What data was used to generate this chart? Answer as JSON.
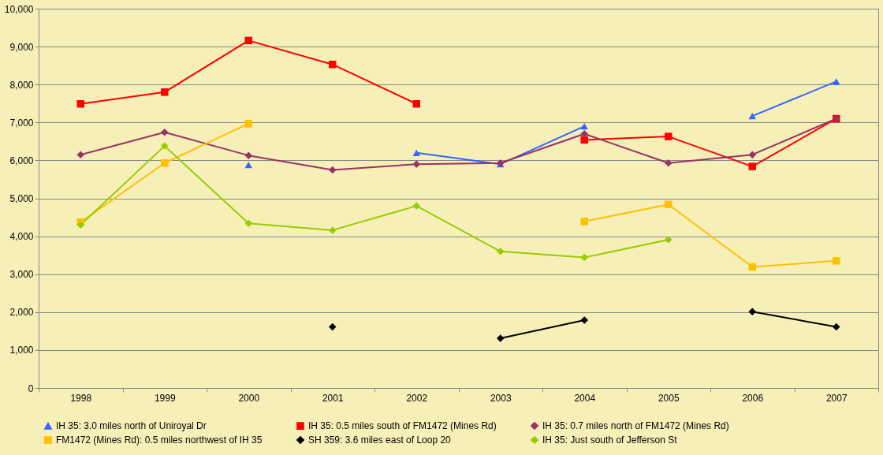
{
  "chart_data": {
    "type": "line",
    "categories": [
      "1998",
      "1999",
      "2000",
      "2001",
      "2002",
      "2003",
      "2004",
      "2005",
      "2006",
      "2007"
    ],
    "ylim": [
      0,
      10000
    ],
    "yticks": [
      0,
      {
        "value": 1000,
        "label": "1,000"
      },
      {
        "value": 2000,
        "label": "2,000"
      },
      {
        "value": 3000,
        "label": "3,000"
      },
      {
        "value": 4000,
        "label": "4,000"
      },
      {
        "value": 5000,
        "label": "5,000"
      },
      {
        "value": 6000,
        "label": "6,000"
      },
      {
        "value": 7000,
        "label": "7,000"
      },
      {
        "value": 8000,
        "label": "8,000"
      },
      {
        "value": 9000,
        "label": "9,000"
      },
      {
        "value": 10000,
        "label": "10,000"
      }
    ],
    "grid": "y",
    "legend": "bottom",
    "line_style": "solid",
    "series": [
      {
        "name": "IH 35: 3.0 miles north of Uniroyal Dr",
        "color": "#3366ff",
        "marker": "triangle",
        "values": [
          null,
          null,
          5880,
          null,
          6200,
          5900,
          6900,
          null,
          7170,
          8080
        ]
      },
      {
        "name": "IH 35: 0.5 miles south of FM1472 (Mines Rd)",
        "color": "#ff0000",
        "marker": "square",
        "values": [
          7490,
          7800,
          9160,
          8530,
          7490,
          null,
          6540,
          6630,
          5840,
          7100
        ]
      },
      {
        "name": "IH 35: 0.7 miles north of FM1472 (Mines Rd)",
        "color": "#993366",
        "marker": "diamond",
        "values": [
          6150,
          6740,
          6130,
          5750,
          5900,
          5930,
          6700,
          5930,
          6150,
          7100
        ]
      },
      {
        "name": "FM1472 (Mines Rd): 0.5 miles northwest of IH 35",
        "color": "#ffc000",
        "marker": "square",
        "values": [
          4370,
          5930,
          6970,
          null,
          null,
          null,
          4390,
          4840,
          3190,
          3350
        ]
      },
      {
        "name": "SH 359: 3.6 miles east of Loop 20",
        "color": "#000000",
        "marker": "diamond",
        "values": [
          null,
          null,
          null,
          1610,
          null,
          1310,
          1790,
          null,
          2010,
          1610
        ]
      },
      {
        "name": "IH 35: Just south of Jefferson St",
        "color": "#99cc00",
        "marker": "diamond",
        "values": [
          4300,
          6380,
          4340,
          4160,
          4800,
          3600,
          3440,
          3910,
          null,
          null
        ]
      }
    ]
  }
}
